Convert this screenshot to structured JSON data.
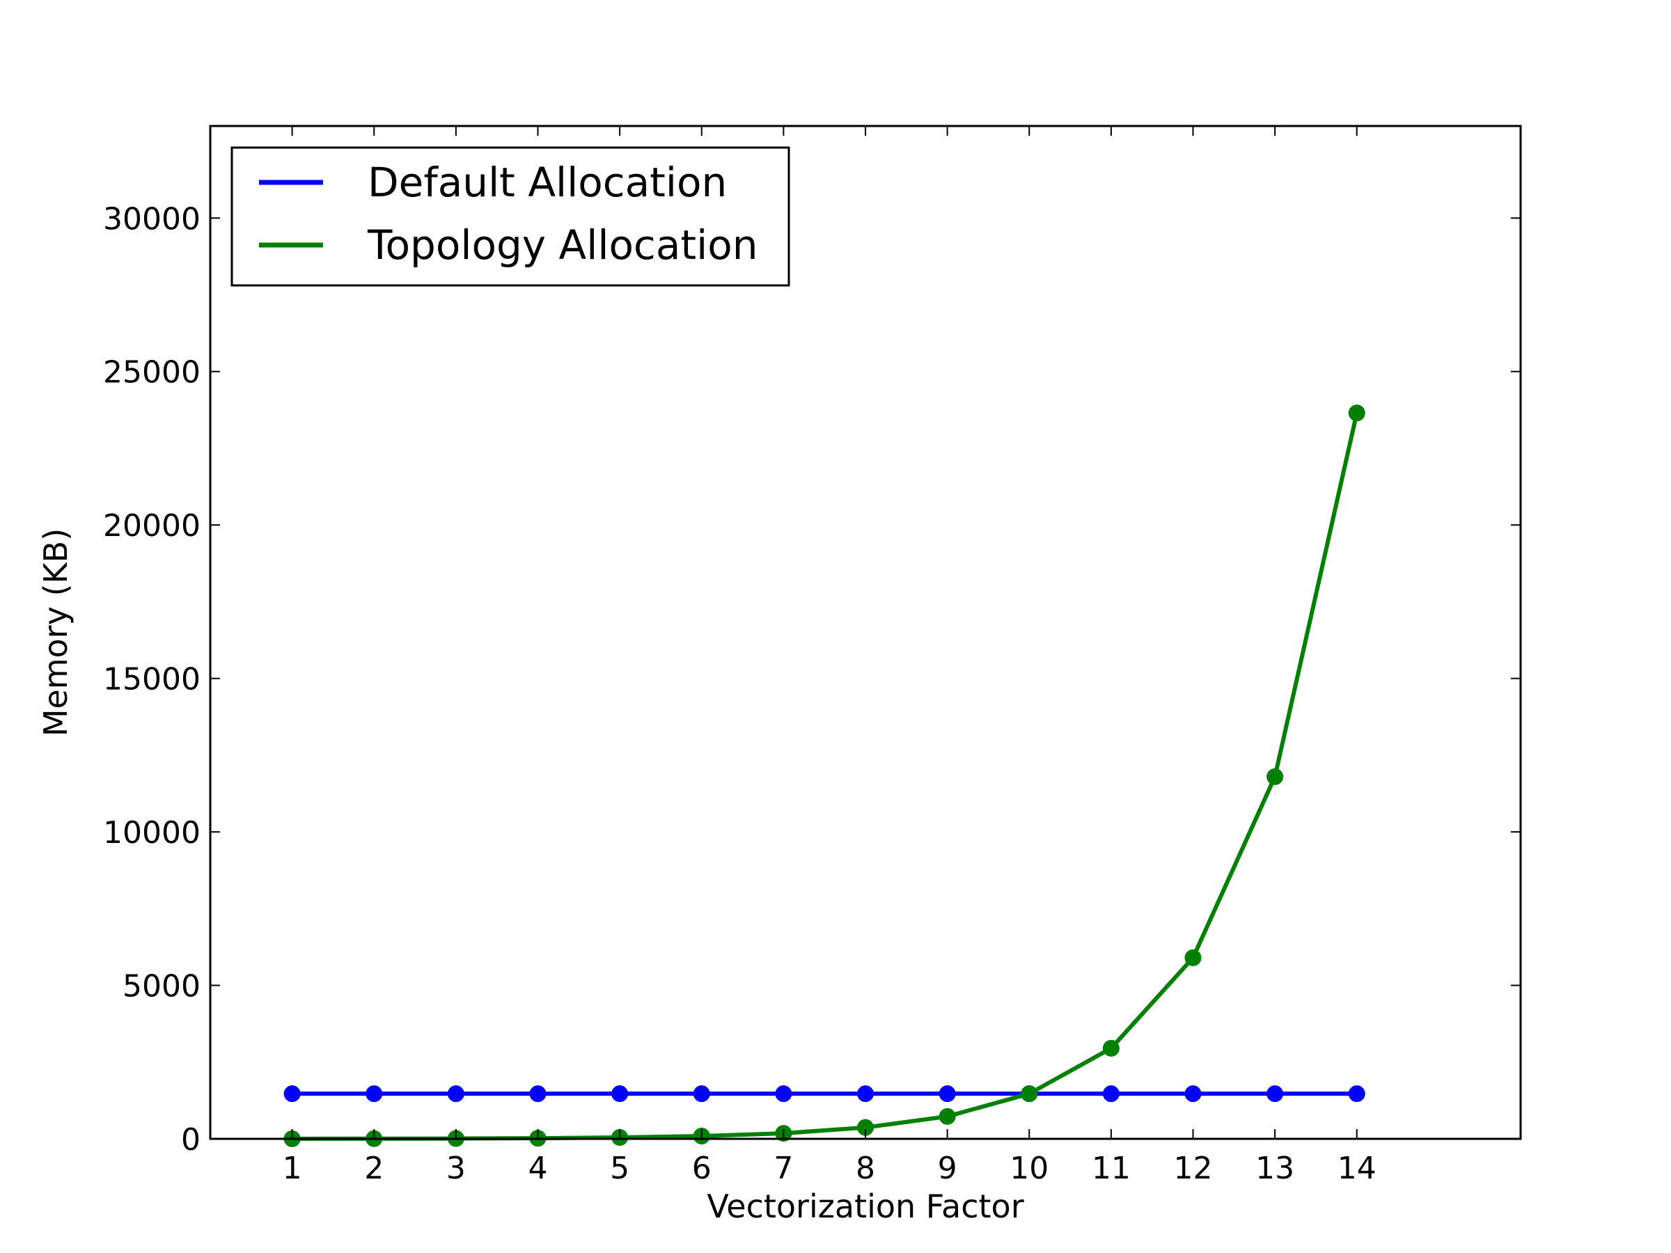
{
  "chart_data": {
    "type": "line",
    "title": "",
    "xlabel": "Vectorization Factor",
    "ylabel": "Memory (KB)",
    "xlim": [
      0,
      16
    ],
    "ylim": [
      0,
      33000
    ],
    "x": [
      1,
      2,
      3,
      4,
      5,
      6,
      7,
      8,
      9,
      10,
      11,
      12,
      13,
      14
    ],
    "xticks": [
      1,
      2,
      3,
      4,
      5,
      6,
      7,
      8,
      9,
      10,
      11,
      12,
      13,
      14
    ],
    "yticks": [
      0,
      5000,
      10000,
      15000,
      20000,
      25000,
      30000
    ],
    "grid": false,
    "legend_position": "top-left",
    "series": [
      {
        "name": "Default Allocation",
        "color": "#0000ff",
        "marker": "circle",
        "values": [
          1470,
          1470,
          1470,
          1470,
          1470,
          1470,
          1470,
          1470,
          1470,
          1470,
          1470,
          1470,
          1470,
          1470
        ]
      },
      {
        "name": "Topology Allocation",
        "color": "#008000",
        "marker": "circle",
        "values": [
          2,
          5,
          10,
          20,
          45,
          90,
          180,
          370,
          730,
          1470,
          2950,
          5900,
          11800,
          23650
        ]
      }
    ]
  }
}
